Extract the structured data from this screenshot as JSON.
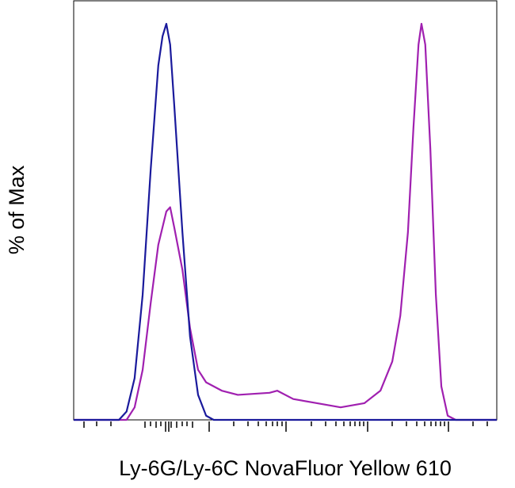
{
  "chart_data": {
    "type": "line",
    "xlabel": "Ly-6G/Ly-6C NovaFluor Yellow 610",
    "ylabel": "% of Max",
    "xlim": [
      0,
      100
    ],
    "ylim": [
      0,
      100
    ],
    "series": [
      {
        "color": "#1a1a9c",
        "x": [
          0,
          10.7,
          12.5,
          14.4,
          16.3,
          18.2,
          20,
          21,
          21.9,
          22.8,
          23.8,
          25.7,
          27.5,
          29.4,
          31.3,
          33.1,
          100
        ],
        "values": [
          0,
          0,
          2,
          10,
          30,
          60,
          85,
          92,
          95,
          90,
          75,
          45,
          20,
          6,
          1,
          0,
          0
        ]
      },
      {
        "color": "#a020b0",
        "x": [
          0,
          12.5,
          14.4,
          16.3,
          18.2,
          20,
          21.9,
          22.8,
          23.8,
          25.7,
          27.5,
          29.4,
          31.3,
          35,
          38.8,
          46.3,
          48.1,
          51.9,
          57.5,
          63.1,
          68.7,
          72.5,
          75.3,
          77.2,
          79,
          80.3,
          81.5,
          82.2,
          83.1,
          84.3,
          85.6,
          86.9,
          88.4,
          90.3,
          100
        ],
        "values": [
          0,
          0,
          3,
          12,
          28,
          42,
          50,
          51,
          46,
          36,
          22,
          12,
          9,
          7,
          6,
          6.5,
          7,
          5,
          4,
          3,
          4,
          7,
          14,
          25,
          45,
          70,
          90,
          95,
          90,
          65,
          30,
          8,
          1,
          0,
          0
        ]
      }
    ]
  }
}
